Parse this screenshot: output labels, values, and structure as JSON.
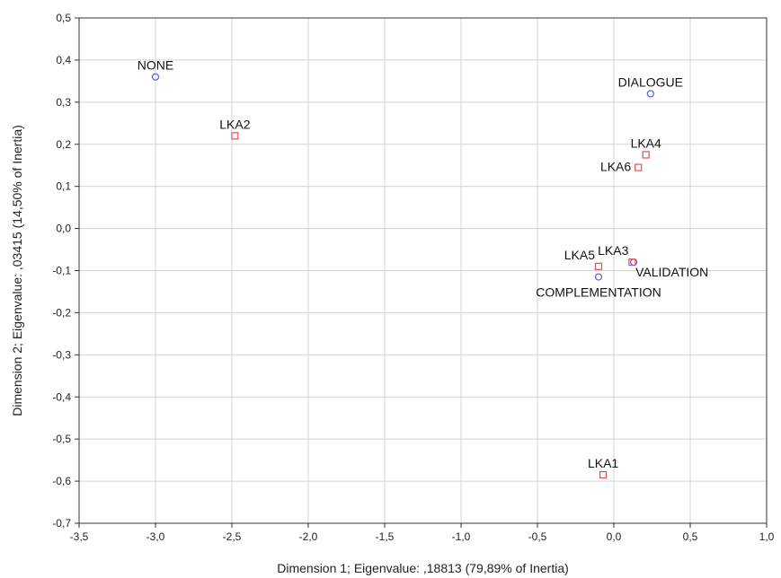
{
  "chart_data": {
    "type": "scatter",
    "title": "",
    "xlabel": "Dimension 1; Eigenvalue: ,18813 (79,89% of Inertia)",
    "ylabel": "Dimension 2; Eigenvalue: ,03415 (14,50% of Inertia)",
    "xlim": [
      -3.5,
      1.0
    ],
    "ylim": [
      -0.7,
      0.5
    ],
    "grid": true,
    "x_ticks": [
      {
        "value": -3.5,
        "label": "-3,5"
      },
      {
        "value": -3.0,
        "label": "-3,0"
      },
      {
        "value": -2.5,
        "label": "-2,5"
      },
      {
        "value": -2.0,
        "label": "-2,0"
      },
      {
        "value": -1.5,
        "label": "-1,5"
      },
      {
        "value": -1.0,
        "label": "-1,0"
      },
      {
        "value": -0.5,
        "label": "-0,5"
      },
      {
        "value": 0.0,
        "label": "0,0"
      },
      {
        "value": 0.5,
        "label": "0,5"
      },
      {
        "value": 1.0,
        "label": "1,0"
      }
    ],
    "y_ticks": [
      {
        "value": 0.5,
        "label": "0,5"
      },
      {
        "value": 0.4,
        "label": "0,4"
      },
      {
        "value": 0.3,
        "label": "0,3"
      },
      {
        "value": 0.2,
        "label": "0,2"
      },
      {
        "value": 0.1,
        "label": "0,1"
      },
      {
        "value": 0.0,
        "label": "0,0"
      },
      {
        "value": -0.1,
        "label": "-0,1"
      },
      {
        "value": -0.2,
        "label": "-0,2"
      },
      {
        "value": -0.3,
        "label": "-0,3"
      },
      {
        "value": -0.4,
        "label": "-0,4"
      },
      {
        "value": -0.5,
        "label": "-0,5"
      },
      {
        "value": -0.6,
        "label": "-0,6"
      },
      {
        "value": -0.7,
        "label": "-0,7"
      }
    ],
    "series": [
      {
        "marker": "circle",
        "color": "#4a5ee0",
        "points": [
          {
            "label": "NONE",
            "x": -3.0,
            "y": 0.36,
            "label_pos": "top"
          },
          {
            "label": "DIALOGUE",
            "x": 0.24,
            "y": 0.32,
            "label_pos": "top"
          },
          {
            "label": "VALIDATION",
            "x": 0.13,
            "y": -0.08,
            "label_pos": "bottom-right"
          },
          {
            "label": "COMPLEMENTATION",
            "x": -0.1,
            "y": -0.115,
            "label_pos": "bottom"
          }
        ]
      },
      {
        "marker": "square",
        "color": "#e05050",
        "points": [
          {
            "label": "LKA2",
            "x": -2.48,
            "y": 0.22,
            "label_pos": "top"
          },
          {
            "label": "LKA4",
            "x": 0.21,
            "y": 0.175,
            "label_pos": "top"
          },
          {
            "label": "LKA6",
            "x": 0.16,
            "y": 0.145,
            "label_pos": "left"
          },
          {
            "label": "LKA3",
            "x": 0.12,
            "y": -0.08,
            "label_pos": "top-left"
          },
          {
            "label": "LKA5",
            "x": -0.1,
            "y": -0.09,
            "label_pos": "top-left"
          },
          {
            "label": "LKA1",
            "x": -0.07,
            "y": -0.585,
            "label_pos": "top"
          }
        ]
      }
    ]
  }
}
